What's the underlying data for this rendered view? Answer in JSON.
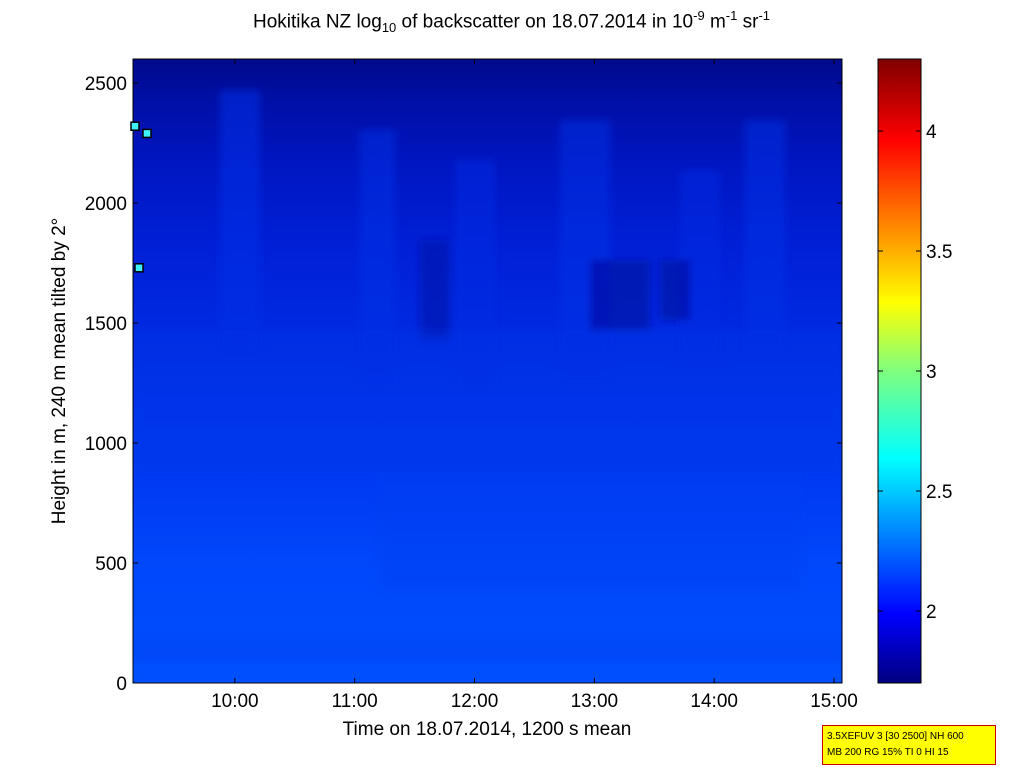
{
  "title": {
    "part1": "Hokitika NZ log",
    "sub1": "10",
    "part2": " of backscatter on 18.07.2014 in 10",
    "sup1": "-9",
    "part3": " m",
    "sup2": "-1",
    "part4": " sr",
    "sup3": "-1"
  },
  "info_box": {
    "line1": "3.5XEFUV 3 [30 2500] NH 600",
    "line2": "MB 200 RG 15% TI 0 HI 15"
  },
  "colors": {
    "upper_dark": "#00088c",
    "mid_blue": "#0026dc",
    "lower_blue": "#0052ff",
    "surface_band": "#0046f8",
    "cyan_marks": "#3ff0ff"
  },
  "chart_data": {
    "type": "heatmap",
    "title": "Hokitika NZ log10 of backscatter on 18.07.2014 in 10-9 m-1 sr-1",
    "xlabel": "Time on 18.07.2014, 1200 s mean",
    "ylabel": "Height in m, 240 m mean tilted by 2°",
    "x_range": [
      "09:09",
      "15:04"
    ],
    "x_ticks": [
      "10:00",
      "11:00",
      "12:00",
      "13:00",
      "14:00",
      "15:00"
    ],
    "ylim": [
      0,
      2600
    ],
    "y_ticks": [
      "0",
      "500",
      "1000",
      "1500",
      "2000",
      "2500"
    ],
    "colorbar": {
      "range": [
        1.7,
        4.3
      ],
      "ticks": [
        "2",
        "2.5",
        "3",
        "3.5",
        "4"
      ],
      "colormap": "jet"
    },
    "layers": [
      {
        "height_from": 0,
        "height_to": 50,
        "value": 2.25
      },
      {
        "height_from": 50,
        "height_to": 400,
        "value": 2.2
      },
      {
        "height_from": 400,
        "height_to": 1200,
        "value": 2.1
      },
      {
        "height_from": 1200,
        "height_to": 2000,
        "value": 1.95
      },
      {
        "height_from": 2000,
        "height_to": 2600,
        "value": 1.8
      }
    ],
    "highlights": [
      {
        "time": "09:10",
        "height": 2320,
        "value": 2.6
      },
      {
        "time": "09:16",
        "height": 2290,
        "value": 2.6
      },
      {
        "time": "09:12",
        "height": 1730,
        "value": 2.6
      }
    ]
  }
}
